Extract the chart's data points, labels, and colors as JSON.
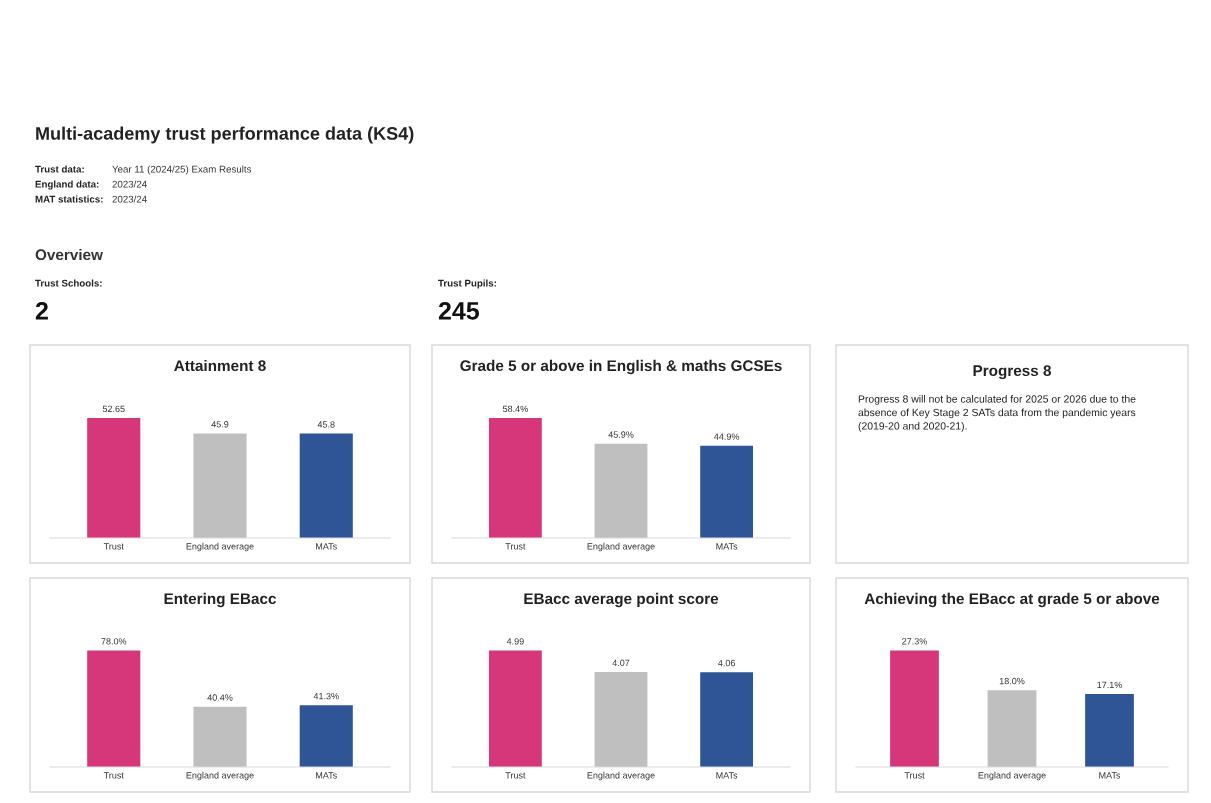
{
  "chart_data": [
    {
      "type": "other",
      "title": "Multi-academy trust performance data (KS4)",
      "annotations": [
        "Trust data:",
        "Year 11 (2024/25) Exam Results",
        "England data:",
        "2023/24",
        "MAT statistics:",
        "2023/24",
        "Overview",
        "Trust Schools:",
        "2",
        "Trust Pupils:",
        "245"
      ]
    },
    {
      "type": "bar",
      "title": "Attainment 8",
      "categories": [
        "Trust",
        "England average",
        "MATs"
      ],
      "values": [
        52.65,
        45.9,
        45.8
      ],
      "colors": [
        "#d6377a",
        "#bfbfbf",
        "#2f5597"
      ],
      "value_labels": [
        "52.65",
        "45.9",
        "45.8"
      ]
    },
    {
      "type": "bar",
      "title": "Grade 5 or above in English & maths GCSEs",
      "categories": [
        "Trust",
        "England average",
        "MATs"
      ],
      "values": [
        58.4,
        45.9,
        44.9
      ],
      "colors": [
        "#d6377a",
        "#bfbfbf",
        "#2f5597"
      ],
      "value_labels": [
        "58.4%",
        "45.9%",
        "44.9%"
      ]
    },
    {
      "type": "other",
      "title": "Progress 8",
      "annotations": [
        "Progress 8 will not be calculated for 2025 or 2026 due to the absence of Key Stage 2 SATs data from the pandemic years (2019-20 and 2020-21)."
      ]
    },
    {
      "type": "bar",
      "title": "Entering EBacc",
      "categories": [
        "Trust",
        "England average",
        "MATs"
      ],
      "values": [
        78.0,
        40.4,
        41.3
      ],
      "colors": [
        "#d6377a",
        "#bfbfbf",
        "#2f5597"
      ],
      "value_labels": [
        "78.0%",
        "40.4%",
        "41.3%"
      ]
    },
    {
      "type": "bar",
      "title": "EBacc average point score",
      "categories": [
        "Trust",
        "England average",
        "MATs"
      ],
      "values": [
        4.99,
        4.07,
        4.06
      ],
      "colors": [
        "#d6377a",
        "#bfbfbf",
        "#2f5597"
      ],
      "value_labels": [
        "4.99",
        "4.07",
        "4.06"
      ]
    },
    {
      "type": "bar",
      "title": "Achieving the EBacc at grade 5 or above",
      "categories": [
        "Trust",
        "England average",
        "MATs"
      ],
      "values": [
        27.3,
        18.0,
        17.1
      ],
      "colors": [
        "#d6377a",
        "#bfbfbf",
        "#2f5597"
      ],
      "value_labels": [
        "27.3%",
        "18.0%",
        "17.1%"
      ]
    }
  ]
}
